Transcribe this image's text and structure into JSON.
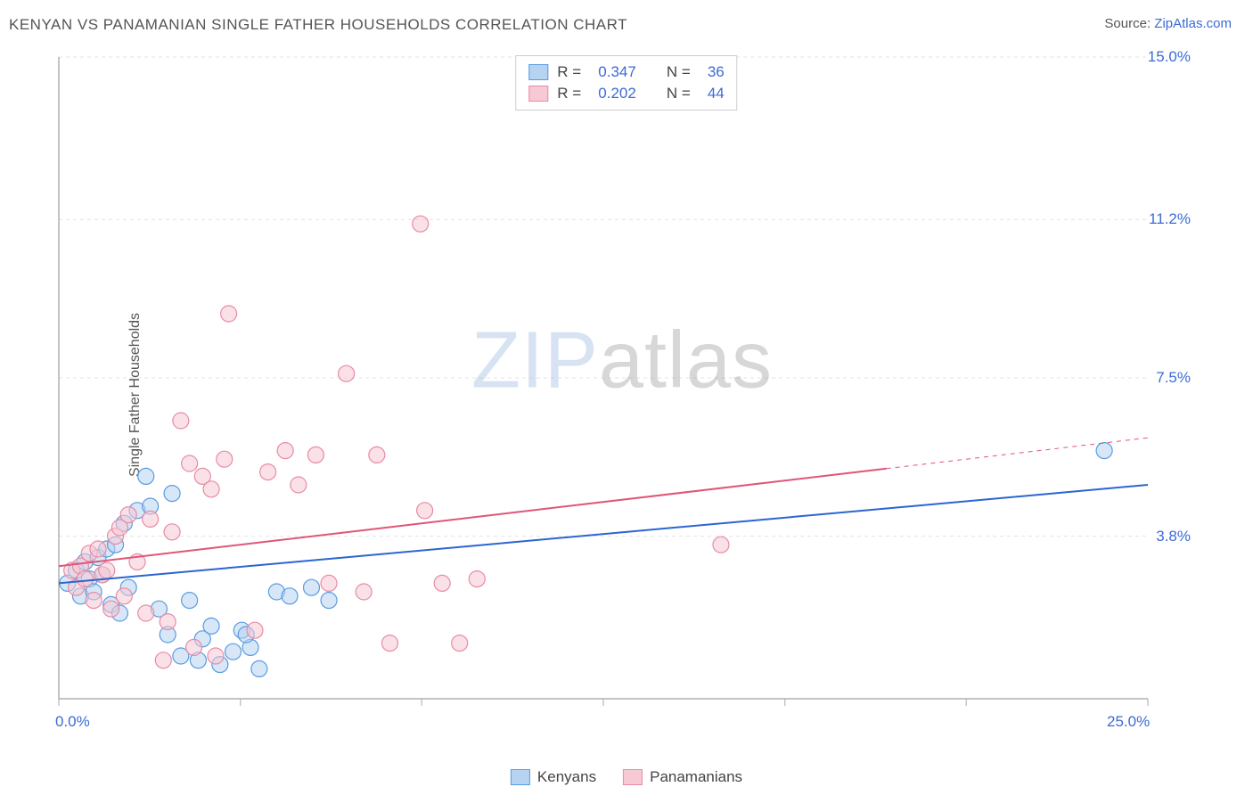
{
  "title": "KENYAN VS PANAMANIAN SINGLE FATHER HOUSEHOLDS CORRELATION CHART",
  "source_prefix": "Source: ",
  "source_name": "ZipAtlas.com",
  "watermark_a": "ZIP",
  "watermark_b": "atlas",
  "y_axis_label": "Single Father Households",
  "chart": {
    "type": "scatter",
    "xlim": [
      0,
      25
    ],
    "ylim": [
      0,
      15
    ],
    "background_color": "#ffffff",
    "grid_color": "#e3e3e3",
    "axis_color": "#888888",
    "tick_color": "#aaaaaa",
    "value_color": "#3b6bd6",
    "y_grid_at": [
      3.8,
      7.5,
      11.2,
      15.0
    ],
    "y_ticks": [
      "3.8%",
      "7.5%",
      "11.2%",
      "15.0%"
    ],
    "x_ticks_at": [
      0,
      4.17,
      8.33,
      12.5,
      16.67,
      20.83,
      25
    ],
    "x_tick_labels": {
      "0": "0.0%",
      "25": "25.0%"
    },
    "marker_radius": 9,
    "marker_stroke_width": 1.2,
    "line_width": 2,
    "series": [
      {
        "name": "Kenyans",
        "fill": "#b7d3f2",
        "stroke": "#5a9be0",
        "line": "#2a66d0",
        "R": "0.347",
        "N": "36",
        "trend": {
          "x1": 0,
          "y1": 2.7,
          "x2": 25,
          "y2": 5.0,
          "solid_until": 25
        },
        "points": [
          [
            0.2,
            2.7
          ],
          [
            0.4,
            3.0
          ],
          [
            0.5,
            2.4
          ],
          [
            0.6,
            3.2
          ],
          [
            0.7,
            2.8
          ],
          [
            0.8,
            2.5
          ],
          [
            0.9,
            3.3
          ],
          [
            1.0,
            2.9
          ],
          [
            1.1,
            3.5
          ],
          [
            1.2,
            2.2
          ],
          [
            1.3,
            3.6
          ],
          [
            1.4,
            2.0
          ],
          [
            1.5,
            4.1
          ],
          [
            1.6,
            2.6
          ],
          [
            1.8,
            4.4
          ],
          [
            2.0,
            5.2
          ],
          [
            2.1,
            4.5
          ],
          [
            2.3,
            2.1
          ],
          [
            2.5,
            1.5
          ],
          [
            2.6,
            4.8
          ],
          [
            2.8,
            1.0
          ],
          [
            3.0,
            2.3
          ],
          [
            3.2,
            0.9
          ],
          [
            3.3,
            1.4
          ],
          [
            3.5,
            1.7
          ],
          [
            3.7,
            0.8
          ],
          [
            4.0,
            1.1
          ],
          [
            4.2,
            1.6
          ],
          [
            4.4,
            1.2
          ],
          [
            4.6,
            0.7
          ],
          [
            5.0,
            2.5
          ],
          [
            5.3,
            2.4
          ],
          [
            5.8,
            2.6
          ],
          [
            6.2,
            2.3
          ],
          [
            4.3,
            1.5
          ],
          [
            24.0,
            5.8
          ]
        ]
      },
      {
        "name": "Panamanians",
        "fill": "#f6c9d4",
        "stroke": "#e88ba3",
        "line": "#e05577",
        "R": "0.202",
        "N": "44",
        "trend": {
          "x1": 0,
          "y1": 3.1,
          "x2": 25,
          "y2": 6.1,
          "solid_until": 19
        },
        "points": [
          [
            0.3,
            3.0
          ],
          [
            0.4,
            2.6
          ],
          [
            0.5,
            3.1
          ],
          [
            0.6,
            2.8
          ],
          [
            0.7,
            3.4
          ],
          [
            0.8,
            2.3
          ],
          [
            0.9,
            3.5
          ],
          [
            1.0,
            2.9
          ],
          [
            1.1,
            3.0
          ],
          [
            1.2,
            2.1
          ],
          [
            1.3,
            3.8
          ],
          [
            1.4,
            4.0
          ],
          [
            1.5,
            2.4
          ],
          [
            1.6,
            4.3
          ],
          [
            1.8,
            3.2
          ],
          [
            2.0,
            2.0
          ],
          [
            2.1,
            4.2
          ],
          [
            2.4,
            0.9
          ],
          [
            2.5,
            1.8
          ],
          [
            2.6,
            3.9
          ],
          [
            2.8,
            6.5
          ],
          [
            3.0,
            5.5
          ],
          [
            3.1,
            1.2
          ],
          [
            3.3,
            5.2
          ],
          [
            3.5,
            4.9
          ],
          [
            3.6,
            1.0
          ],
          [
            3.8,
            5.6
          ],
          [
            3.9,
            9.0
          ],
          [
            4.5,
            1.6
          ],
          [
            4.8,
            5.3
          ],
          [
            5.2,
            5.8
          ],
          [
            5.9,
            5.7
          ],
          [
            6.2,
            2.7
          ],
          [
            6.6,
            7.6
          ],
          [
            7.0,
            2.5
          ],
          [
            7.3,
            5.7
          ],
          [
            7.6,
            1.3
          ],
          [
            8.3,
            11.1
          ],
          [
            8.4,
            4.4
          ],
          [
            8.8,
            2.7
          ],
          [
            9.2,
            1.3
          ],
          [
            9.6,
            2.8
          ],
          [
            5.5,
            5.0
          ],
          [
            15.2,
            3.6
          ]
        ]
      }
    ]
  },
  "legend_labels": {
    "R": "R =",
    "N": "N ="
  }
}
